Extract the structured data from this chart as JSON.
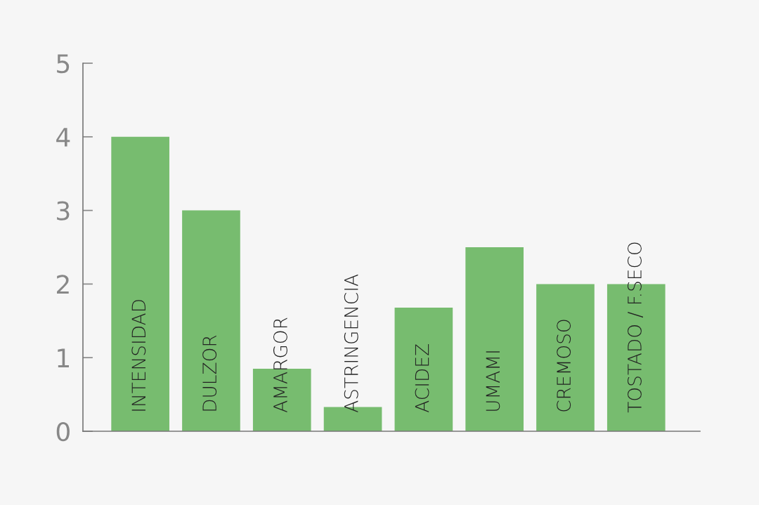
{
  "chart_data": {
    "type": "bar",
    "categories": [
      "INTENSIDAD",
      "DULZOR",
      "AMARGOR",
      "ASTRINGENCIA",
      "ACIDEZ",
      "UMAMI",
      "CREMOSO",
      "TOSTADO / F.SECO"
    ],
    "values": [
      4,
      3,
      0.85,
      0.33,
      1.68,
      2.5,
      2,
      2
    ],
    "color": "#77bc6f",
    "ylim": [
      0,
      5
    ],
    "yticks": [
      0,
      1,
      2,
      3,
      4,
      5
    ],
    "grid": false,
    "legend": false
  }
}
